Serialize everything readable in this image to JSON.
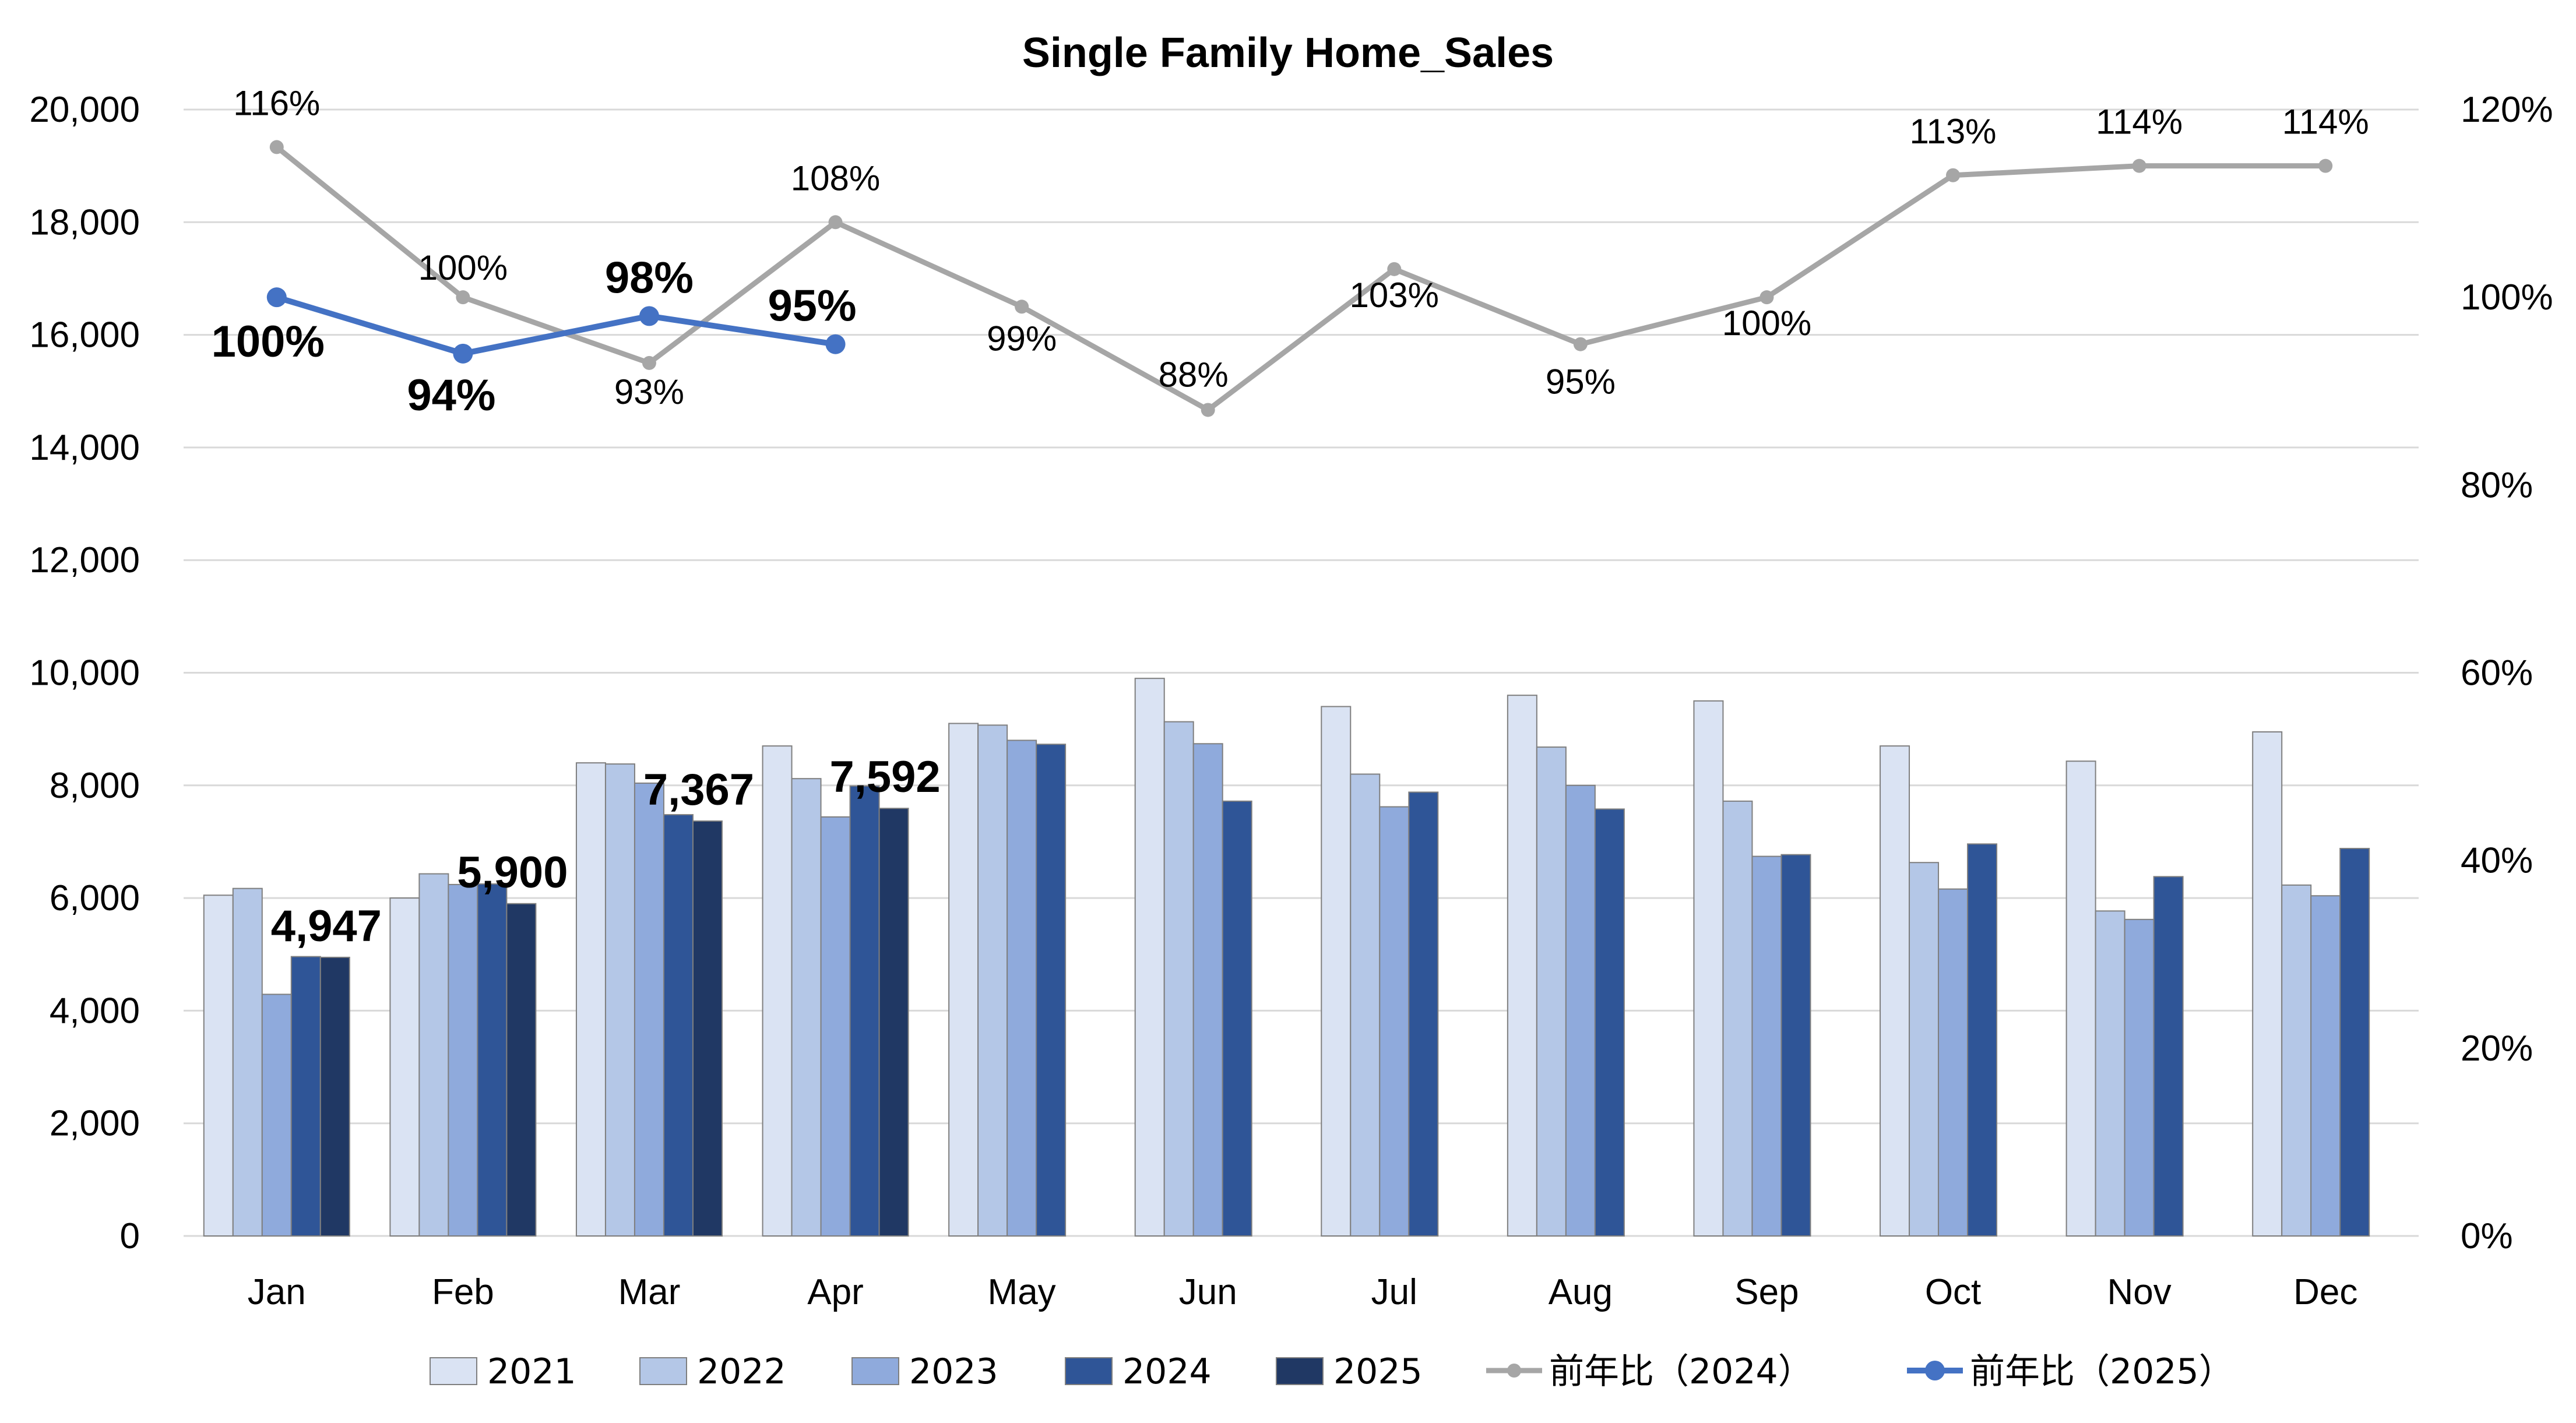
{
  "chart_data": {
    "type": "bar",
    "title": "Single Family Home_Sales",
    "categories": [
      "Jan",
      "Feb",
      "Mar",
      "Apr",
      "May",
      "Jun",
      "Jul",
      "Aug",
      "Sep",
      "Oct",
      "Nov",
      "Dec"
    ],
    "y_left": {
      "min": 0,
      "max": 20000,
      "step": 2000,
      "ticks": [
        "0",
        "2,000",
        "4,000",
        "6,000",
        "8,000",
        "10,000",
        "12,000",
        "14,000",
        "16,000",
        "18,000",
        "20,000"
      ]
    },
    "y_right": {
      "min": 0,
      "max": 1.2,
      "step": 0.2,
      "ticks": [
        "0%",
        "20%",
        "40%",
        "60%",
        "80%",
        "100%",
        "120%"
      ]
    },
    "bar_series": [
      {
        "name": "2021",
        "color": "#dae3f3",
        "values": [
          6050,
          6000,
          8400,
          8700,
          9100,
          9900,
          9400,
          9600,
          9500,
          8700,
          8430,
          8950
        ]
      },
      {
        "name": "2022",
        "color": "#b4c7e7",
        "values": [
          6170,
          6430,
          8380,
          8120,
          9070,
          9130,
          8200,
          8680,
          7720,
          6630,
          5770,
          6230
        ]
      },
      {
        "name": "2023",
        "color": "#8faadc",
        "values": [
          4290,
          6240,
          8040,
          7440,
          8800,
          8740,
          7620,
          8000,
          6740,
          6160,
          5620,
          6040
        ]
      },
      {
        "name": "2024",
        "color": "#2f5597",
        "values": [
          4960,
          6250,
          7480,
          7990,
          8730,
          7720,
          7880,
          7580,
          6770,
          6960,
          6380,
          6880
        ]
      },
      {
        "name": "2025",
        "color": "#203864",
        "values": [
          4947,
          5900,
          7367,
          7592,
          null,
          null,
          null,
          null,
          null,
          null,
          null,
          null
        ]
      }
    ],
    "bar_labels_2025": [
      "4,947",
      "5,900",
      "7,367",
      "7,592"
    ],
    "line_series": [
      {
        "name": "前年比（2024）",
        "color": "#a6a6a6",
        "values": [
          1.16,
          1.0,
          0.93,
          1.08,
          0.99,
          0.88,
          1.03,
          0.95,
          1.0,
          1.13,
          1.14,
          1.14
        ],
        "labels": [
          "116%",
          "100%",
          "93%",
          "108%",
          "99%",
          "88%",
          "103%",
          "95%",
          "100%",
          "113%",
          "114%",
          "114%"
        ]
      },
      {
        "name": "前年比（2025）",
        "color": "#4472c4",
        "values": [
          1.0,
          0.94,
          0.98,
          0.95
        ],
        "labels": [
          "100%",
          "94%",
          "98%",
          "95%"
        ]
      }
    ],
    "grid": true,
    "legend": "bottom"
  }
}
